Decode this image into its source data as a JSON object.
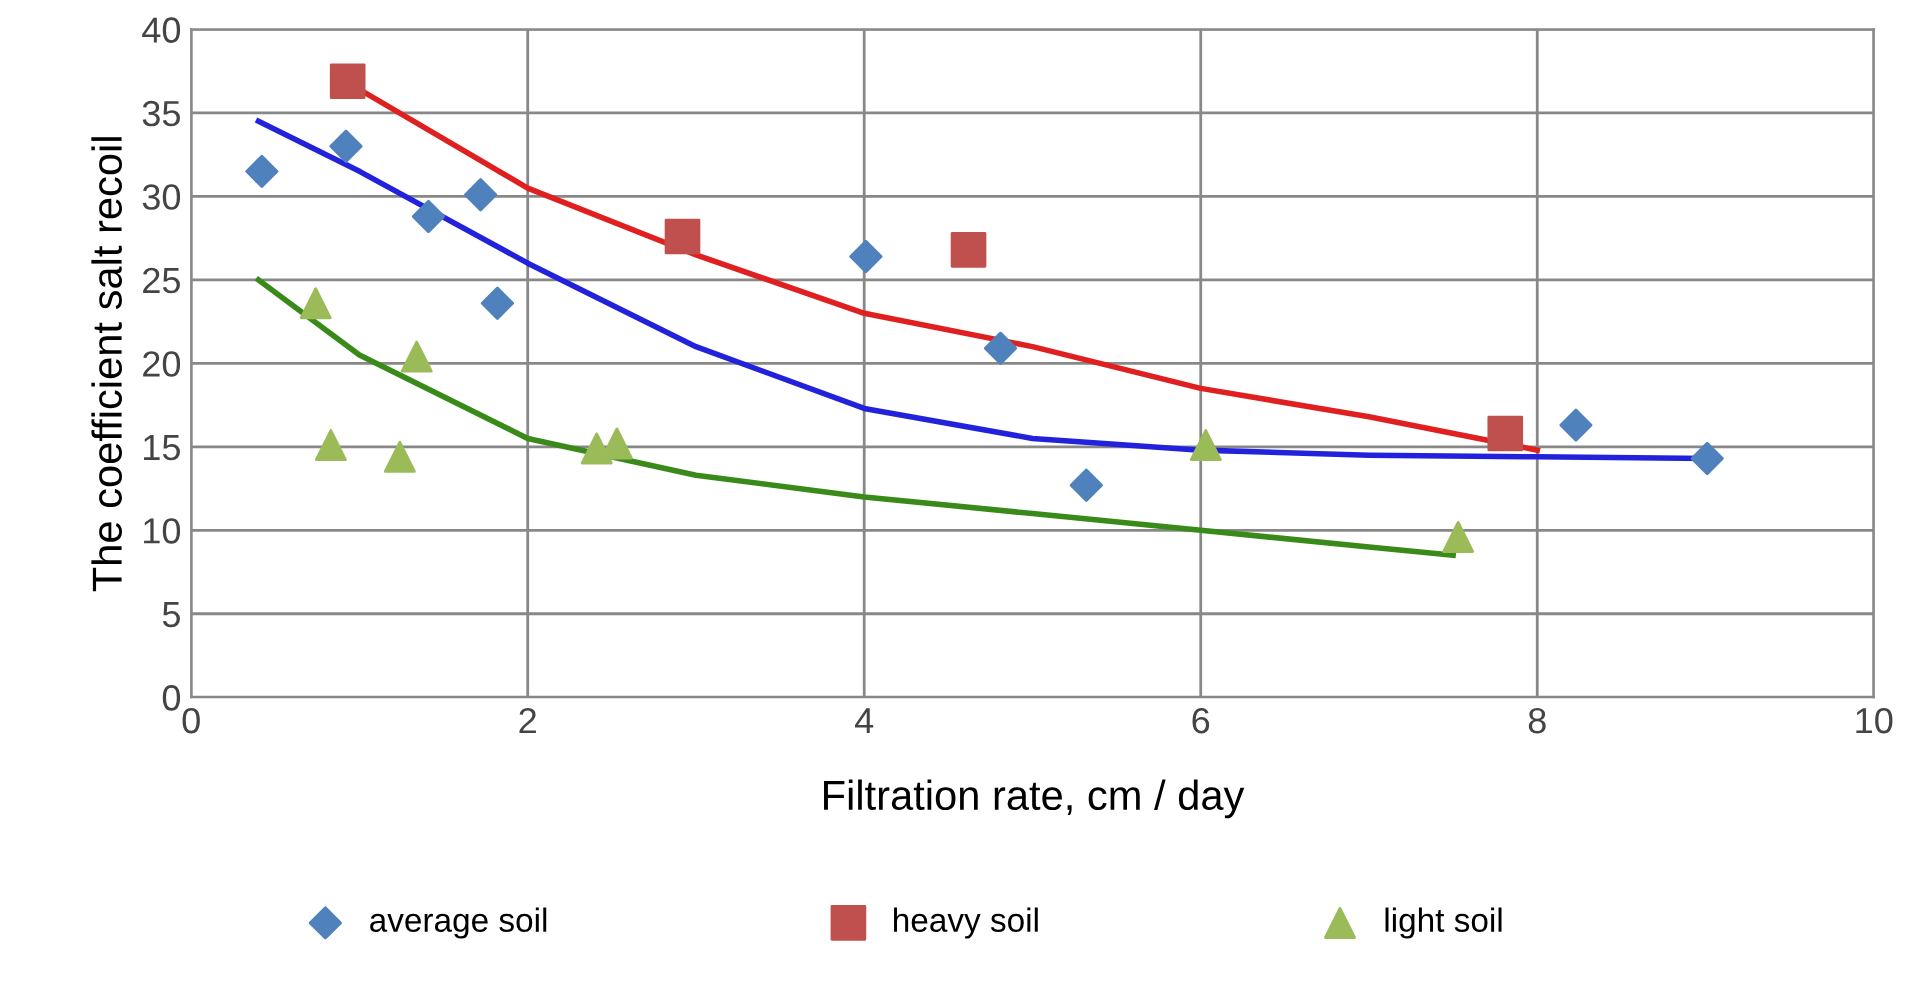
{
  "chart_data": {
    "type": "scatter",
    "xlabel": "Filtration rate, cm / day",
    "ylabel": "The coefficient salt recoil",
    "xlim": [
      0,
      10
    ],
    "ylim": [
      0,
      40
    ],
    "xticks": [
      0,
      2,
      4,
      6,
      8,
      10
    ],
    "yticks": [
      0,
      5,
      10,
      15,
      20,
      25,
      30,
      35,
      40
    ],
    "grid": true,
    "legend": "bottom",
    "series": [
      {
        "name": "average soil",
        "color": "#4f81bd",
        "marker": "diamond",
        "x": [
          0.42,
          0.92,
          1.41,
          1.72,
          1.82,
          4.01,
          4.81,
          5.32,
          8.23,
          9.01
        ],
        "values": [
          31.5,
          33,
          28.8,
          30.1,
          23.6,
          26.4,
          20.9,
          12.7,
          16.3,
          14.3
        ]
      },
      {
        "name": "heavy soil",
        "color": "#c0504d",
        "marker": "square",
        "x": [
          0.93,
          2.92,
          4.62,
          7.81
        ],
        "values": [
          36.9,
          27.6,
          26.8,
          15.8
        ]
      },
      {
        "name": "light soil",
        "color": "#9bbb59",
        "marker": "triangle",
        "x": [
          0.74,
          0.83,
          1.24,
          1.34,
          2.41,
          2.53,
          6.03,
          7.53
        ],
        "values": [
          23.6,
          15.1,
          14.4,
          20.4,
          14.9,
          15.2,
          15.1,
          9.6
        ]
      },
      {
        "type": "line",
        "color": "#2222dd",
        "x": [
          0.4,
          1,
          2,
          3,
          4,
          5,
          6,
          7,
          8,
          9
        ],
        "values": [
          34.5,
          31.5,
          26,
          21,
          17.3,
          15.5,
          14.8,
          14.5,
          14.4,
          14.3
        ]
      },
      {
        "type": "line",
        "color": "#e02020",
        "x": [
          0.9,
          2,
          3,
          4,
          5,
          6,
          7,
          8
        ],
        "values": [
          37,
          30.5,
          26.5,
          23,
          21,
          18.5,
          16.8,
          14.8
        ]
      },
      {
        "type": "line",
        "color": "#3a8a1a",
        "x": [
          0.4,
          1,
          2,
          3,
          4,
          5,
          6,
          7,
          7.5
        ],
        "values": [
          25,
          20.5,
          15.5,
          13.3,
          12,
          11,
          10,
          9,
          8.5
        ]
      }
    ]
  }
}
